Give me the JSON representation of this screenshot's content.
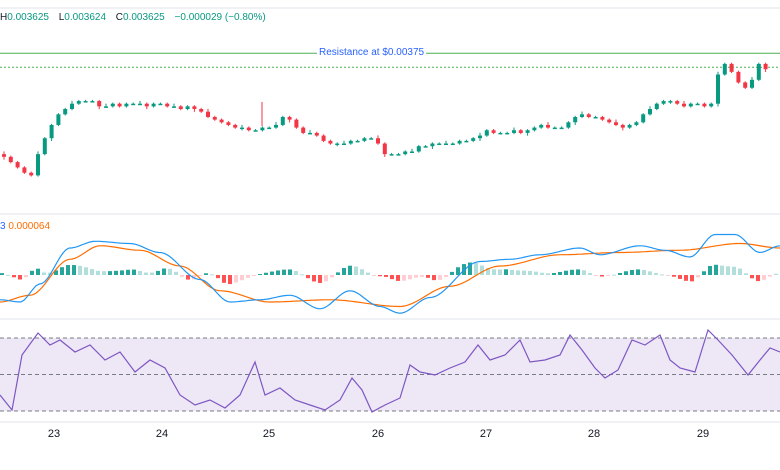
{
  "ohlc": {
    "h_label": "H",
    "h": "0.003625",
    "l_label": "L",
    "l": "0.003624",
    "c_label": "C",
    "c": "0.003625",
    "chg": "−0.000029 (−0.80%)"
  },
  "annotation": {
    "resistance_label": "Resistance at $0.00375",
    "resistance_value": 0.00375
  },
  "macd_legend": {
    "left": "3",
    "value": "0.000064",
    "left_color": "#2962ff",
    "value_color": "#ff6d00"
  },
  "colors": {
    "up": "#089981",
    "down": "#f23645",
    "resistance": "#4caf50",
    "macd_line": "#2196f3",
    "signal_line": "#ff6d00",
    "hist_up_strong": "#26a69a",
    "hist_up_weak": "#b2dfdb",
    "hist_down_strong": "#ff5252",
    "hist_down_weak": "#ffcdd2",
    "rsi_line": "#7e57c2",
    "rsi_band": "#ede7f6"
  },
  "chart_data": {
    "type": "candlestick",
    "x_axis": {
      "tick_labels": [
        "23",
        "24",
        "25",
        "26",
        "27",
        "28",
        "29"
      ]
    },
    "price": {
      "resistance": 0.00375,
      "close_path": [
        0.00336,
        0.00334,
        0.00332,
        0.0033,
        0.00329,
        0.00337,
        0.00343,
        0.00348,
        0.00352,
        0.00354,
        0.00356,
        0.00357,
        0.00357,
        0.00357,
        0.00355,
        0.00355,
        0.00356,
        0.00355,
        0.00356,
        0.00356,
        0.00356,
        0.00355,
        0.00356,
        0.00356,
        0.00355,
        0.00355,
        0.00354,
        0.00355,
        0.00354,
        0.00353,
        0.00351,
        0.0035,
        0.00349,
        0.00348,
        0.00347,
        0.00347,
        0.00346,
        0.00346,
        0.00347,
        0.00347,
        0.00348,
        0.00351,
        0.0035,
        0.00347,
        0.00345,
        0.00345,
        0.00344,
        0.00342,
        0.00341,
        0.00341,
        0.00341,
        0.00342,
        0.00342,
        0.00343,
        0.00343,
        0.00341,
        0.00337,
        0.00337,
        0.00337,
        0.00338,
        0.00338,
        0.0034,
        0.0034,
        0.00341,
        0.00341,
        0.00341,
        0.00341,
        0.00342,
        0.00342,
        0.00343,
        0.00344,
        0.00346,
        0.00345,
        0.00345,
        0.00345,
        0.00346,
        0.00345,
        0.00346,
        0.00347,
        0.00348,
        0.00347,
        0.00347,
        0.00347,
        0.00349,
        0.00351,
        0.00352,
        0.00351,
        0.00351,
        0.0035,
        0.00349,
        0.00348,
        0.00347,
        0.00348,
        0.00349,
        0.00352,
        0.00354,
        0.00356,
        0.00357,
        0.00357,
        0.00356,
        0.00355,
        0.00356,
        0.00356,
        0.00355,
        0.00356,
        0.00367,
        0.00371,
        0.00368,
        0.00364,
        0.00362,
        0.00365,
        0.00371,
        0.00369
      ]
    },
    "macd": {
      "legend_value": 6.4e-05,
      "signal_last": 6.4e-05
    },
    "rsi": {
      "upper": 70,
      "middle": 50,
      "lower": 30
    }
  }
}
